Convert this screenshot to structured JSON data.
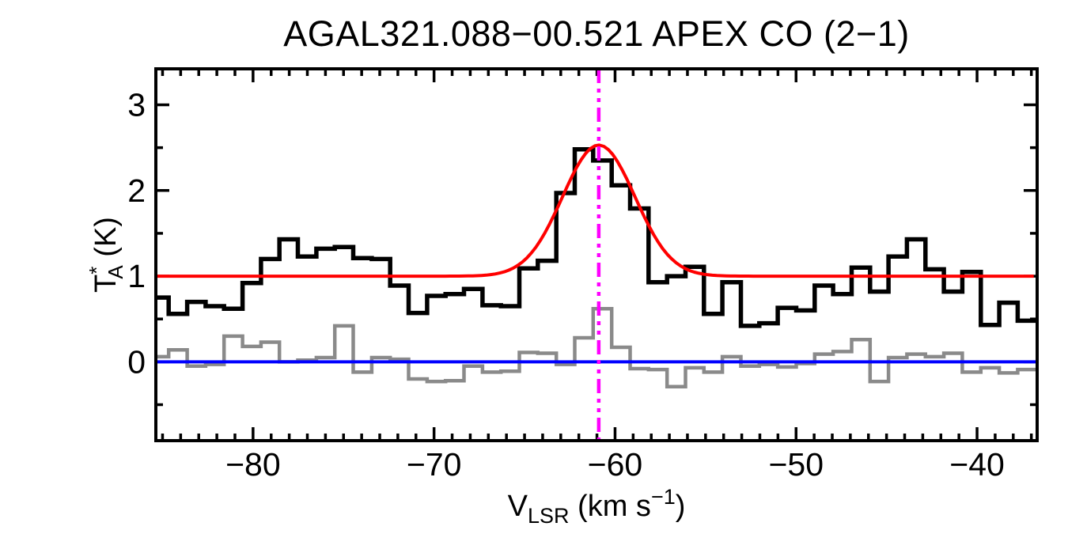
{
  "chart_data": {
    "type": "line",
    "style": "step-histogram-spectrum",
    "title": "AGAL321.088−00.521  APEX CO (2−1)",
    "xlabel": {
      "base": "V",
      "sub": "LSR",
      "mid": " (km s",
      "sup": "−1",
      "end": ")"
    },
    "ylabel": {
      "base": "T",
      "sup": "*",
      "sub": "A",
      "unit": " (K)"
    },
    "xlim": [
      -85.37,
      -36.68
    ],
    "ylim": [
      -0.92,
      3.42
    ],
    "x_major_ticks": [
      -80,
      -70,
      -60,
      -50,
      -40
    ],
    "x_tick_labels": [
      "−80",
      "−70",
      "−60",
      "−50",
      "−40"
    ],
    "x_minor_step": 1,
    "y_major_ticks": [
      0,
      1,
      2,
      3
    ],
    "y_tick_labels": [
      "0",
      "1",
      "2",
      "3"
    ],
    "y_minor_step": 0.5,
    "grid": false,
    "legend": "none",
    "bins": {
      "start": -85.68,
      "width": 1.0197,
      "unit": "km/s"
    },
    "series": [
      {
        "name": "spectrum",
        "color": "#000000",
        "values": [
          0.75,
          0.56,
          0.7,
          0.65,
          0.62,
          0.92,
          1.2,
          1.43,
          1.23,
          1.32,
          1.34,
          1.21,
          1.2,
          0.89,
          0.57,
          0.77,
          0.79,
          0.85,
          0.66,
          0.65,
          1.09,
          1.18,
          1.97,
          2.48,
          2.35,
          2.06,
          1.79,
          0.93,
          1.0,
          1.11,
          0.56,
          0.93,
          0.42,
          0.45,
          0.63,
          0.6,
          0.89,
          0.79,
          1.1,
          0.82,
          1.23,
          1.43,
          1.08,
          0.82,
          1.05,
          0.43,
          0.69,
          0.48
        ]
      },
      {
        "name": "residual",
        "color": "#8a8a8a",
        "values": [
          0.06,
          0.14,
          -0.05,
          -0.03,
          0.3,
          0.18,
          0.23,
          0.0,
          0.02,
          0.05,
          0.42,
          -0.12,
          0.05,
          0.03,
          -0.2,
          -0.23,
          -0.22,
          -0.05,
          -0.12,
          -0.11,
          0.11,
          0.1,
          -0.03,
          0.28,
          0.62,
          0.17,
          -0.08,
          -0.09,
          -0.29,
          -0.07,
          -0.12,
          0.06,
          -0.05,
          -0.03,
          -0.06,
          -0.02,
          0.09,
          0.12,
          0.26,
          -0.23,
          0.05,
          0.09,
          0.06,
          0.1,
          -0.12,
          -0.07,
          -0.13,
          -0.09
        ]
      }
    ],
    "fit": {
      "name": "gaussian-fit",
      "color": "#ff0000",
      "baseline": 1.0,
      "amplitude": 1.53,
      "center": -60.9,
      "sigma": 2.0
    },
    "baseline_line": {
      "name": "zero-baseline",
      "color": "#0000ff",
      "y": 0.0
    },
    "marker_line": {
      "name": "vlsr-marker",
      "color": "#ff00ff",
      "x": -60.9,
      "dash": "dash-dot-dot"
    }
  },
  "colors": {
    "background": "#ffffff",
    "axis": "#000000",
    "spectrum": "#000000",
    "fit": "#ff0000",
    "baseline": "#0000ff",
    "residual": "#8a8a8a",
    "marker": "#ff00ff"
  }
}
